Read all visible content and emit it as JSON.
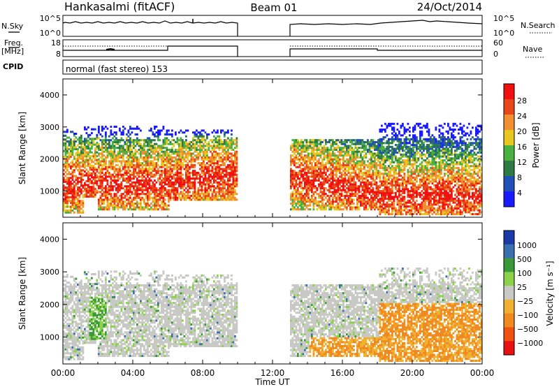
{
  "header": {
    "station": "Hankasalmi (fitACF)",
    "beam": "Beam 01",
    "date": "24/Oct/2014"
  },
  "noise_panel": {
    "left_label": "N.Sky",
    "right_label": "N.Search",
    "left_ticks": [
      "10^5",
      "10^0"
    ],
    "right_ticks": [
      "10^5",
      "10^0"
    ]
  },
  "freq_panel": {
    "left_label_1": "Freq.",
    "left_label_2": "[MHz]",
    "right_label": "Nave",
    "left_ticks": [
      "18",
      "8"
    ],
    "right_ticks": [
      "60",
      "0"
    ]
  },
  "cpid": {
    "label": "CPID",
    "text": "normal (fast stereo) 153"
  },
  "chart_data": [
    {
      "type": "heatmap",
      "name": "power",
      "ylabel": "Slant Range [km]",
      "ylim": [
        180,
        4500
      ],
      "y_ticks": [
        "4000",
        "3000",
        "2000",
        "1000"
      ],
      "colorbar_title": "Power [dB]",
      "colorbar_ticks": [
        "28",
        "24",
        "20",
        "16",
        "12",
        "8",
        "4"
      ],
      "colors": [
        "#1a1aff",
        "#2050b8",
        "#2f7a45",
        "#4ab040",
        "#e8c820",
        "#f09030",
        "#e84818",
        "#f01010"
      ]
    },
    {
      "type": "heatmap",
      "name": "velocity",
      "ylabel": "Slant Range [km]",
      "ylim": [
        180,
        4500
      ],
      "y_ticks": [
        "4000",
        "3000",
        "2000",
        "1000"
      ],
      "colorbar_title": "Velocity [m s⁻¹]",
      "colorbar_ticks": [
        "1000",
        "500",
        "100",
        "25",
        "−25",
        "−100",
        "−500",
        "−1000"
      ],
      "colors": [
        "#1a3aa8",
        "#3a6fb0",
        "#3a9a3a",
        "#8bd24a",
        "#c8c8c4",
        "#f0b030",
        "#f08a20",
        "#f05010",
        "#e81010"
      ]
    }
  ],
  "time_axis": {
    "label": "Time UT",
    "ticks": [
      "00:00",
      "04:00",
      "08:00",
      "12:00",
      "16:00",
      "20:00",
      "00:00"
    ],
    "data_gap_hours": [
      10,
      13
    ]
  }
}
